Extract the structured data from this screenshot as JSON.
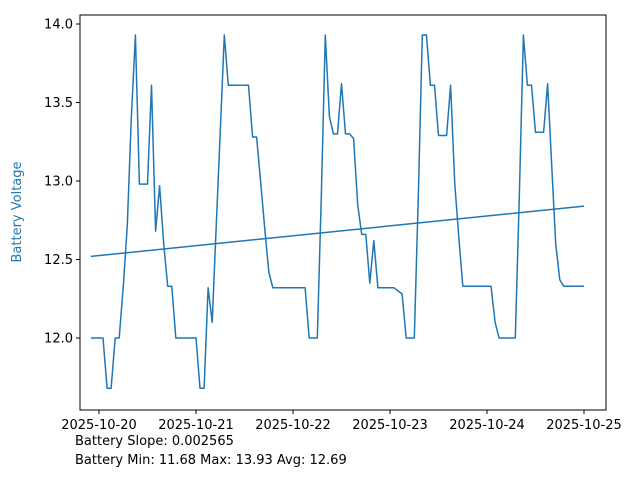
{
  "chart_data": {
    "type": "line",
    "title": "",
    "xlabel": "",
    "ylabel": "Battery Voltage",
    "accent_color": "#1f77b4",
    "axis_color": "#000000",
    "grid": false,
    "legend": "none",
    "ylim": [
      11.57,
      14.04
    ],
    "y_ticks": [
      12.0,
      12.5,
      13.0,
      13.5,
      14.0
    ],
    "y_tick_labels": [
      "12.0",
      "12.5",
      "13.0",
      "13.5",
      "14.0"
    ],
    "x_tick_hours": [
      0,
      24,
      48,
      72,
      96,
      120
    ],
    "x_tick_labels": [
      "2025-10-20",
      "2025-10-21",
      "2025-10-22",
      "2025-10-23",
      "2025-10-24",
      "2025-10-25"
    ],
    "series": [
      {
        "name": "battery_voltage",
        "start_hour": -2,
        "step_hours": 1,
        "values": [
          12.0,
          12.0,
          12.0,
          12.0,
          11.68,
          11.68,
          12.0,
          12.0,
          12.33,
          12.72,
          13.4,
          13.93,
          12.98,
          12.98,
          12.98,
          13.61,
          12.68,
          12.97,
          12.6,
          12.33,
          12.33,
          12.0,
          12.0,
          12.0,
          12.0,
          12.0,
          12.0,
          11.68,
          11.68,
          12.32,
          12.1,
          12.71,
          13.32,
          13.93,
          13.61,
          13.61,
          13.61,
          13.61,
          13.61,
          13.61,
          13.28,
          13.28,
          12.99,
          12.7,
          12.42,
          12.32,
          12.32,
          12.32,
          12.32,
          12.32,
          12.32,
          12.32,
          12.32,
          12.32,
          12.0,
          12.0,
          12.0,
          12.9,
          13.93,
          13.41,
          13.3,
          13.3,
          13.62,
          13.3,
          13.3,
          13.27,
          12.85,
          12.66,
          12.66,
          12.35,
          12.62,
          12.32,
          12.32,
          12.32,
          12.32,
          12.32,
          12.3,
          12.28,
          12.0,
          12.0,
          12.0,
          12.9,
          13.93,
          13.93,
          13.61,
          13.61,
          13.29,
          13.29,
          13.29,
          13.61,
          12.99,
          12.65,
          12.33,
          12.33,
          12.33,
          12.33,
          12.33,
          12.33,
          12.33,
          12.33,
          12.1,
          12.0,
          12.0,
          12.0,
          12.0,
          12.0,
          12.9,
          13.93,
          13.61,
          13.61,
          13.31,
          13.31,
          13.31,
          13.62,
          13.1,
          12.6,
          12.37,
          12.33,
          12.33,
          12.33,
          12.33,
          12.33,
          12.33
        ]
      },
      {
        "name": "battery_trend",
        "points": [
          [
            -2,
            12.52
          ],
          [
            120,
            12.84
          ]
        ]
      }
    ],
    "stats": {
      "slope_line": "Battery Slope: 0.002565",
      "minmax_line": "Battery Min: 11.68 Max: 13.93 Avg: 12.69"
    }
  }
}
